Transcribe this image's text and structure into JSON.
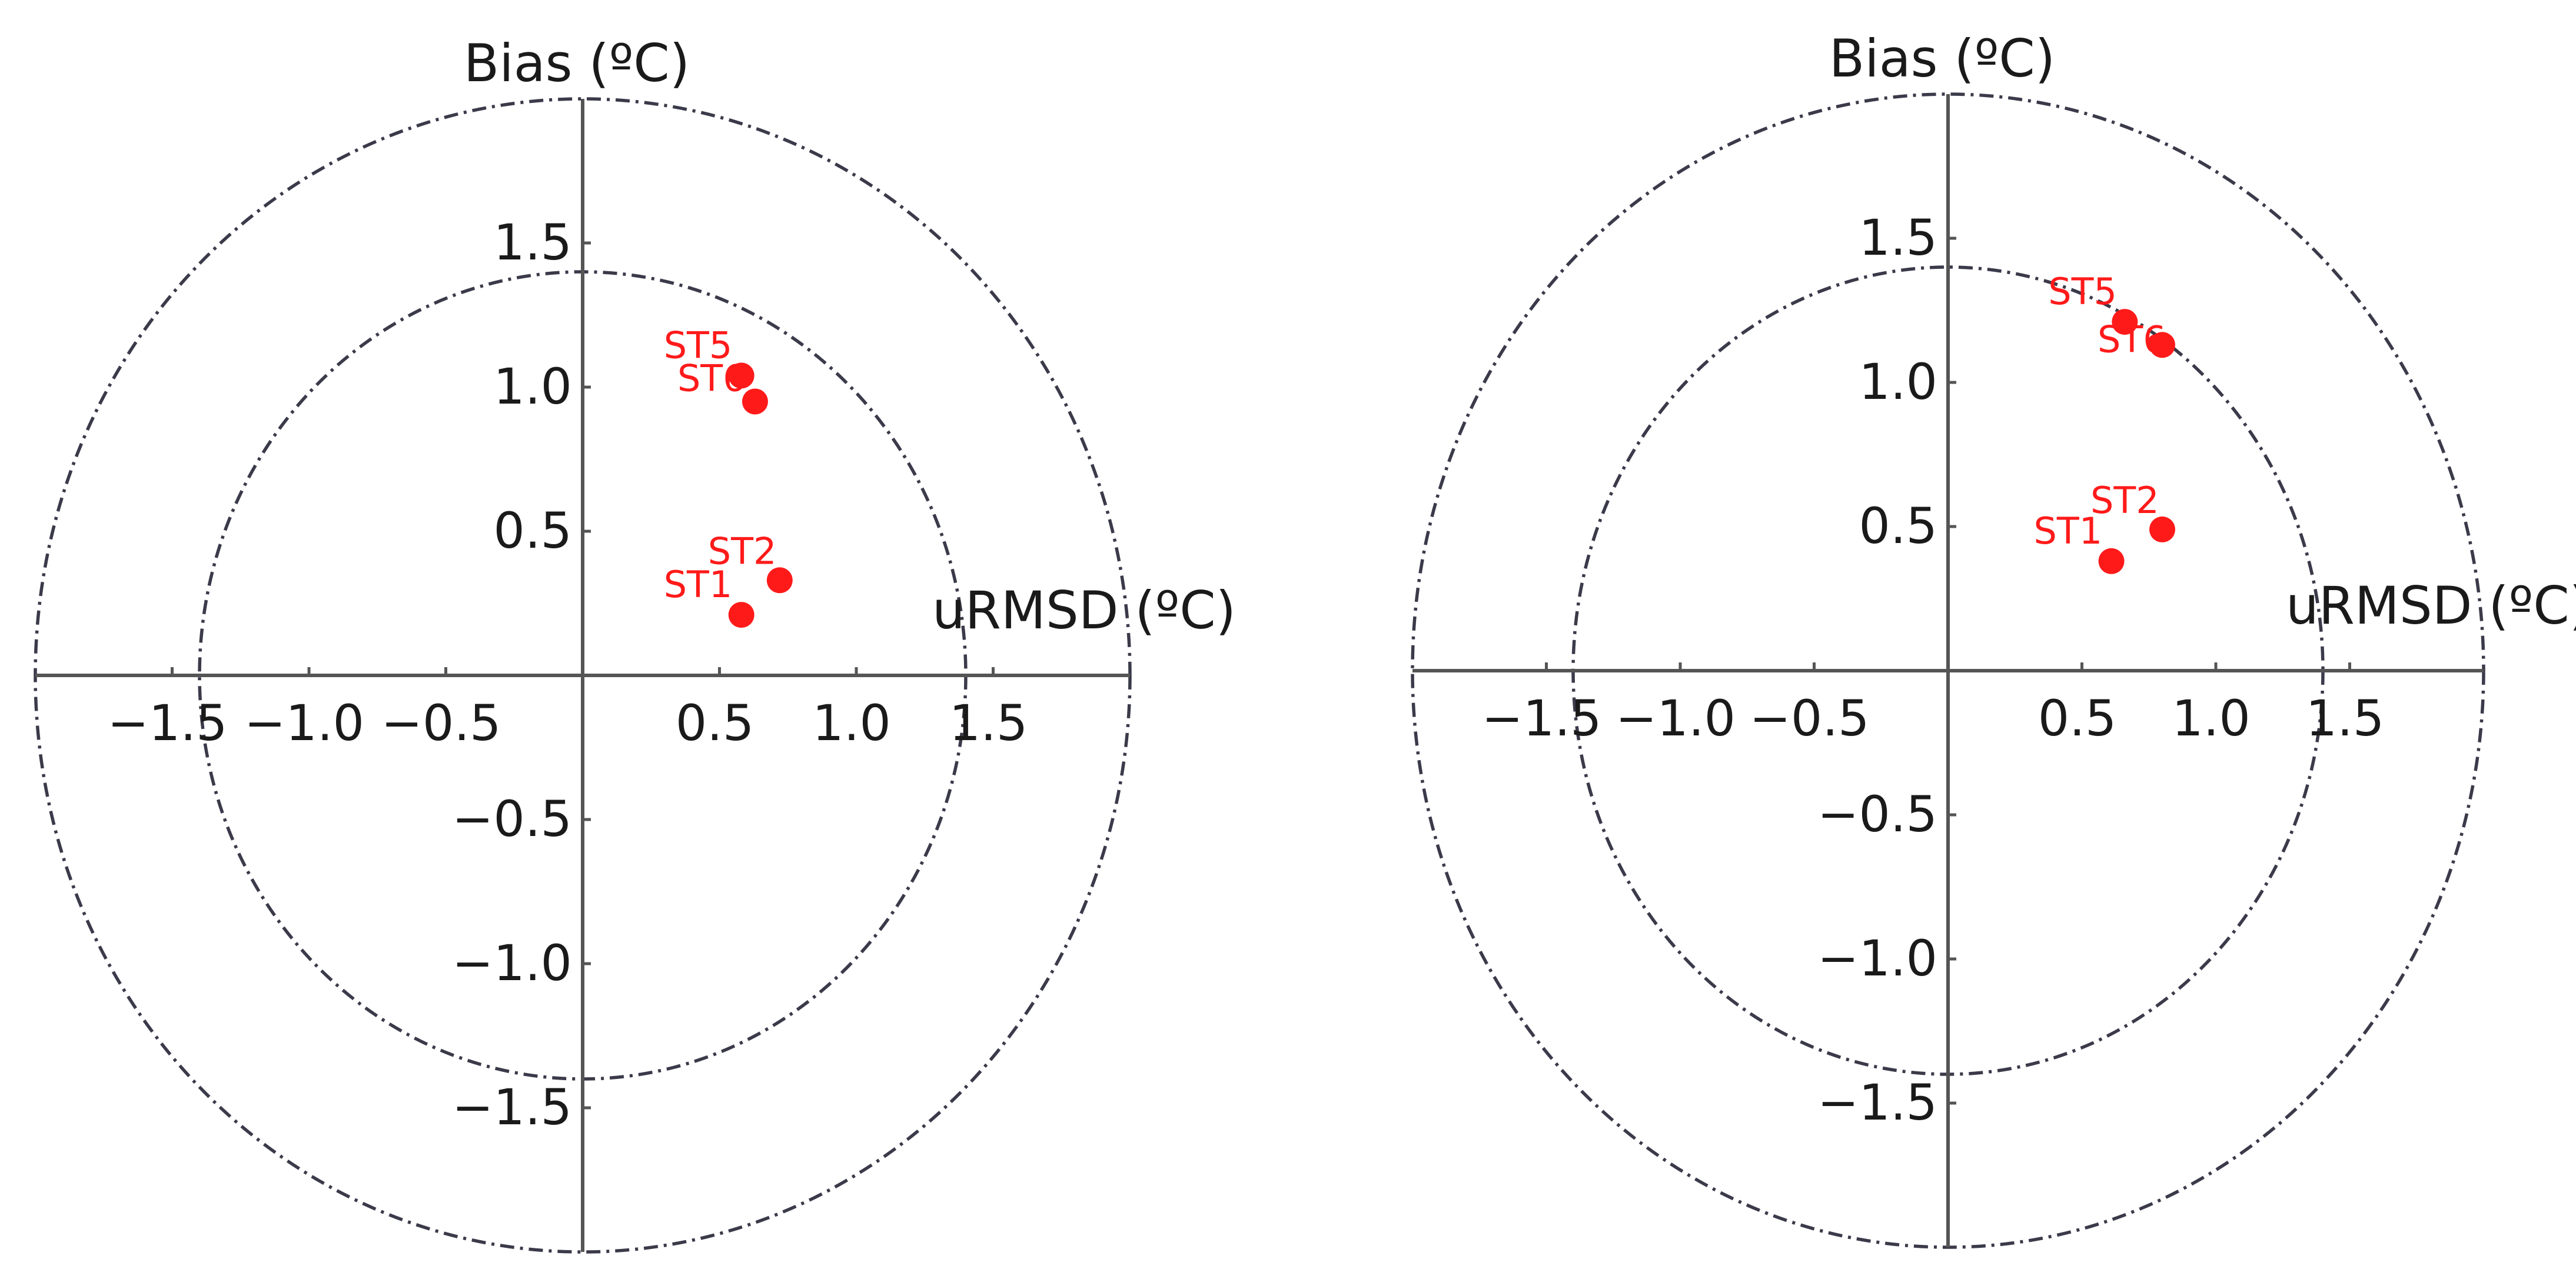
{
  "chart_data": [
    {
      "type": "scatter",
      "title": "",
      "xlabel": "uRMSD (ºC)",
      "ylabel": "Bias (ºC)",
      "xlim": [
        -2.0,
        2.0
      ],
      "ylim": [
        -2.0,
        2.0
      ],
      "x_ticks": [
        "−1.5",
        "−1.0",
        "−0.5",
        "0.5",
        "1.0",
        "1.5"
      ],
      "y_ticks": [
        "1.5",
        "1.0",
        "0.5",
        "−0.5",
        "−1.0",
        "−1.5"
      ],
      "reference_circles": [
        1.4,
        2.0
      ],
      "grid": false,
      "color": "#ff1a1a",
      "points": [
        {
          "label": "ST5",
          "x": 0.58,
          "y": 1.04
        },
        {
          "label": "ST6",
          "x": 0.63,
          "y": 0.95
        },
        {
          "label": "ST2",
          "x": 0.72,
          "y": 0.33
        },
        {
          "label": "ST1",
          "x": 0.58,
          "y": 0.21
        }
      ]
    },
    {
      "type": "scatter",
      "title": "",
      "xlabel": "uRMSD (ºC)",
      "ylabel": "Bias (ºC)",
      "xlim": [
        -2.0,
        2.0
      ],
      "ylim": [
        -2.0,
        2.0
      ],
      "x_ticks": [
        "−1.5",
        "−1.0",
        "−0.5",
        "0.5",
        "1.0",
        "1.5"
      ],
      "y_ticks": [
        "1.5",
        "1.0",
        "0.5",
        "−0.5",
        "−1.0",
        "−1.5"
      ],
      "reference_circles": [
        1.4,
        2.0
      ],
      "grid": false,
      "color": "#ff1a1a",
      "points": [
        {
          "label": "ST5",
          "x": 0.66,
          "y": 1.21
        },
        {
          "label": "ST6",
          "x": 0.8,
          "y": 1.13
        },
        {
          "label": "ST2",
          "x": 0.8,
          "y": 0.49
        },
        {
          "label": "ST1",
          "x": 0.61,
          "y": 0.38
        }
      ]
    }
  ]
}
